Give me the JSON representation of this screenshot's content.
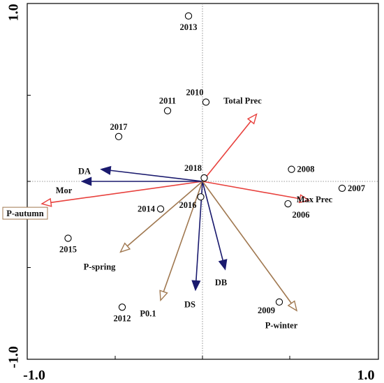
{
  "chart_data": {
    "type": "scatter",
    "title": "",
    "xlabel": "",
    "ylabel": "",
    "xlim": [
      -1.0,
      1.0
    ],
    "ylim": [
      -1.0,
      1.0
    ],
    "x_tick_labels": [
      {
        "value": -1.0,
        "label": "-1.0"
      },
      {
        "value": 1.0,
        "label": "1.0"
      }
    ],
    "y_tick_labels": [
      {
        "value": 1.0,
        "label": "1.0"
      },
      {
        "value": -1.0,
        "label": "-1.0"
      }
    ],
    "y_minor_ticks": [
      0.5,
      0.0,
      -0.5
    ],
    "x_minor_ticks": [
      -0.5,
      0.0,
      0.5
    ],
    "zero_lines": "dotted",
    "points": [
      {
        "label": "2013",
        "x": -0.08,
        "y": 0.96,
        "label_pos": "below"
      },
      {
        "label": "2010",
        "x": 0.02,
        "y": 0.46,
        "label_pos": "above-left"
      },
      {
        "label": "2011",
        "x": -0.2,
        "y": 0.41,
        "label_pos": "above"
      },
      {
        "label": "2017",
        "x": -0.48,
        "y": 0.26,
        "label_pos": "above"
      },
      {
        "label": "2018",
        "x": 0.01,
        "y": 0.02,
        "label_pos": "above-left"
      },
      {
        "label": "2008",
        "x": 0.51,
        "y": 0.07,
        "label_pos": "right"
      },
      {
        "label": "2007",
        "x": 0.8,
        "y": -0.04,
        "label_pos": "right"
      },
      {
        "label": "2006",
        "x": 0.49,
        "y": -0.13,
        "label_pos": "below-right"
      },
      {
        "label": "2014",
        "x": -0.24,
        "y": -0.16,
        "label_pos": "left"
      },
      {
        "label": "2016",
        "x": -0.01,
        "y": -0.09,
        "label_pos": "below-left"
      },
      {
        "label": "2015",
        "x": -0.77,
        "y": -0.33,
        "label_pos": "below"
      },
      {
        "label": "2012",
        "x": -0.46,
        "y": -0.73,
        "label_pos": "below"
      },
      {
        "label": "2009",
        "x": 0.44,
        "y": -0.7,
        "label_pos": "below-left"
      }
    ],
    "vectors": [
      {
        "label": "Total Prec",
        "x": 0.31,
        "y": 0.39,
        "color": "#e8413d",
        "label_dx": -20,
        "label_dy": -18
      },
      {
        "label": "Max Prec",
        "x": 0.61,
        "y": -0.11,
        "color": "#e8413d",
        "label_dx": 8,
        "label_dy": 0
      },
      {
        "label": "P-autumn",
        "x": -0.92,
        "y": -0.13,
        "color": "#e8413d",
        "label_dx": -30,
        "label_dy": 15,
        "boxed": true
      },
      {
        "label": "DA",
        "x": -0.58,
        "y": 0.07,
        "color": "#1a1a6e",
        "label_dx": -24,
        "label_dy": 4
      },
      {
        "label": "Mor",
        "x": -0.69,
        "y": 0.0,
        "color": "#1a1a6e",
        "label_dx": -26,
        "label_dy": 14
      },
      {
        "label": "P-spring",
        "x": -0.47,
        "y": -0.41,
        "color": "#a07850",
        "label_dx": -30,
        "label_dy": 22
      },
      {
        "label": "P0.1",
        "x": -0.24,
        "y": -0.69,
        "color": "#a07850",
        "label_dx": -18,
        "label_dy": 20
      },
      {
        "label": "DS",
        "x": -0.04,
        "y": -0.63,
        "color": "#1a1a6e",
        "label_dx": -8,
        "label_dy": 22
      },
      {
        "label": "DB",
        "x": 0.13,
        "y": -0.51,
        "color": "#1a1a6e",
        "label_dx": -6,
        "label_dy": 20
      },
      {
        "label": "P-winter",
        "x": 0.54,
        "y": -0.75,
        "color": "#a07850",
        "label_dx": -22,
        "label_dy": 22
      }
    ]
  }
}
